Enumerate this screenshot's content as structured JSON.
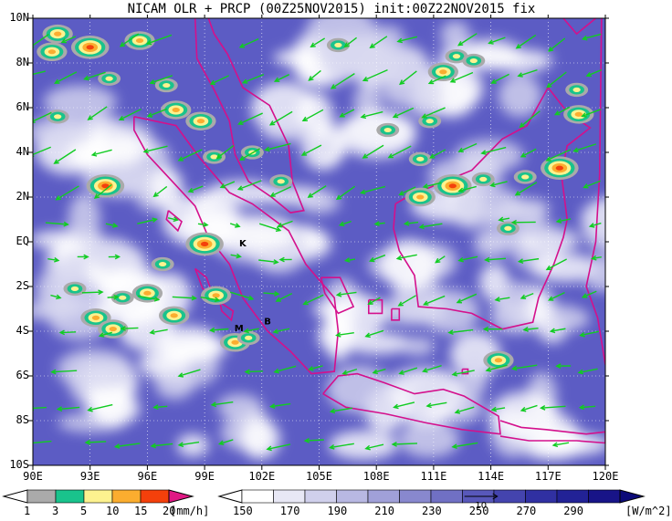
{
  "title": "NICAM OLR + PRCP (00Z25NOV2015) init:00Z22NOV2015 fix",
  "map": {
    "lon_range": [
      90,
      120
    ],
    "lat_range": [
      -10,
      10
    ],
    "x_ticks": [
      "90E",
      "93E",
      "96E",
      "99E",
      "102E",
      "105E",
      "108E",
      "111E",
      "114E",
      "117E",
      "120E"
    ],
    "y_ticks": [
      "10N",
      "8N",
      "6N",
      "4N",
      "2N",
      "EQ",
      "2S",
      "4S",
      "6S",
      "8S",
      "10S"
    ],
    "station_labels": [
      {
        "text": "K",
        "lon": 101.0,
        "lat": -0.2
      },
      {
        "text": "B",
        "lon": 102.3,
        "lat": -3.7
      },
      {
        "text": "M",
        "lon": 100.8,
        "lat": -4.0
      }
    ],
    "colors": {
      "ocean_bg": "#5c5cc4",
      "coast": "#d4108c",
      "wind": "#11cc22",
      "grid": "#ffffff"
    },
    "vector_reference_label": "10"
  },
  "legend_prcp": {
    "labels": [
      "1",
      "3",
      "5",
      "10",
      "15",
      "20"
    ],
    "unit": "[mm/h]",
    "colors": [
      "#aaaaaa",
      "#19c38c",
      "#fdf28f",
      "#fbad2f",
      "#f4400b",
      "#e01884"
    ]
  },
  "legend_olr": {
    "labels": [
      "150",
      "170",
      "190",
      "210",
      "230",
      "250",
      "270",
      "290"
    ],
    "unit": "[W/m^2]",
    "colors": [
      "#ffffff",
      "#e8e8f5",
      "#d0d0ec",
      "#b8b8e2",
      "#a0a0d8",
      "#8888ce",
      "#7070c4",
      "#5858ba",
      "#4444ae",
      "#3030a2",
      "#222296",
      "#181488"
    ]
  }
}
